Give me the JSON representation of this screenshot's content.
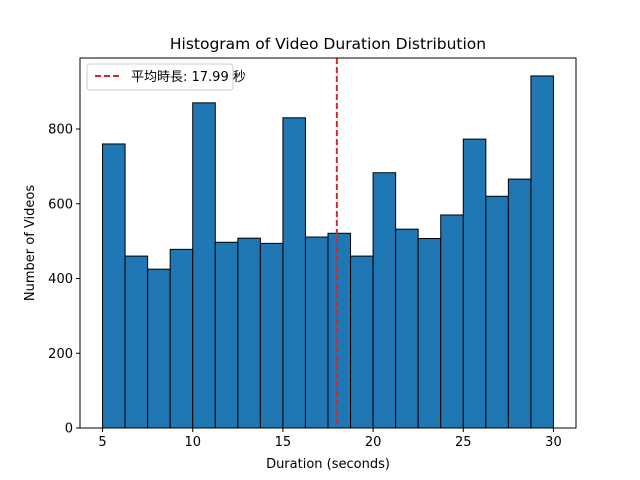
{
  "chart_data": {
    "type": "bar",
    "title": "Histogram of Video Duration Distribution",
    "xlabel": "Duration (seconds)",
    "ylabel": "Number of Videos",
    "xlim": [
      3.75,
      31.25
    ],
    "ylim": [
      0,
      990
    ],
    "x_ticks": [
      5,
      10,
      15,
      20,
      25,
      30
    ],
    "y_ticks": [
      0,
      200,
      400,
      600,
      800
    ],
    "bin_start": 5,
    "bin_width": 1.25,
    "values": [
      760,
      460,
      425,
      478,
      870,
      497,
      508,
      494,
      830,
      511,
      521,
      460,
      683,
      532,
      507,
      570,
      773,
      620,
      666,
      942
    ],
    "bar_color": "#1f77b4",
    "bar_edge_color": "#000000",
    "mean_line": {
      "x": 17.99,
      "label": "平均時長: 17.99 秒",
      "color": "#d62728",
      "style": "dashed"
    },
    "legend_position": "upper-left",
    "grid": false
  }
}
